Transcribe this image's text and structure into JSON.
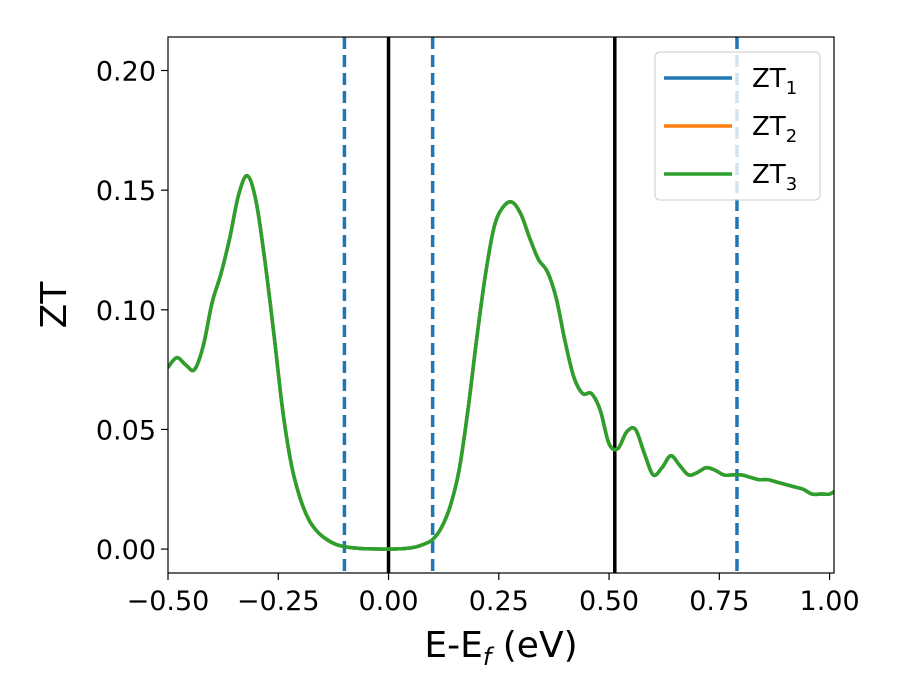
{
  "chart_data": {
    "type": "line",
    "xlabel": "E-E",
    "xlabel_sub": "f",
    "xlabel_unit": " (eV)",
    "ylabel": "ZT",
    "xlim": [
      -0.5,
      1.01
    ],
    "ylim": [
      -0.01,
      0.214
    ],
    "xticks": [
      -0.5,
      -0.25,
      0.0,
      0.25,
      0.5,
      0.75,
      1.0
    ],
    "xtick_labels": [
      "−0.50",
      "−0.25",
      "0.00",
      "0.25",
      "0.50",
      "0.75",
      "1.00"
    ],
    "yticks": [
      0.0,
      0.05,
      0.1,
      0.15,
      0.2
    ],
    "ytick_labels": [
      "0.00",
      "0.05",
      "0.10",
      "0.15",
      "0.20"
    ],
    "legend_position": "top-right",
    "series": [
      {
        "name": "ZT",
        "sub": "1",
        "color": "#1f77b4",
        "x": [
          -0.5,
          -0.48,
          -0.46,
          -0.44,
          -0.42,
          -0.4,
          -0.38,
          -0.36,
          -0.34,
          -0.32,
          -0.3,
          -0.28,
          -0.26,
          -0.24,
          -0.22,
          -0.2,
          -0.18,
          -0.16,
          -0.14,
          -0.12,
          -0.1,
          -0.08,
          -0.06,
          -0.04,
          -0.02,
          0.0,
          0.02,
          0.04,
          0.06,
          0.08,
          0.1,
          0.12,
          0.14,
          0.16,
          0.18,
          0.2,
          0.22,
          0.24,
          0.26,
          0.28,
          0.3,
          0.32,
          0.34,
          0.36,
          0.38,
          0.4,
          0.42,
          0.44,
          0.46,
          0.48,
          0.5,
          0.52,
          0.54,
          0.56,
          0.58,
          0.6,
          0.62,
          0.64,
          0.66,
          0.68,
          0.7,
          0.72,
          0.74,
          0.76,
          0.78,
          0.8,
          0.82,
          0.84,
          0.86,
          0.88,
          0.9,
          0.92,
          0.94,
          0.96,
          0.98,
          1.0,
          1.01
        ],
        "y": [
          0.076,
          0.08,
          0.077,
          0.075,
          0.085,
          0.103,
          0.115,
          0.13,
          0.148,
          0.156,
          0.145,
          0.12,
          0.09,
          0.058,
          0.035,
          0.021,
          0.012,
          0.007,
          0.004,
          0.002,
          0.001,
          0.0005,
          0.0002,
          0.0001,
          0.0,
          0.0,
          0.0001,
          0.0003,
          0.0008,
          0.002,
          0.004,
          0.009,
          0.018,
          0.033,
          0.058,
          0.088,
          0.115,
          0.135,
          0.143,
          0.145,
          0.14,
          0.13,
          0.121,
          0.116,
          0.105,
          0.087,
          0.072,
          0.065,
          0.065,
          0.058,
          0.044,
          0.042,
          0.049,
          0.05,
          0.04,
          0.031,
          0.034,
          0.039,
          0.035,
          0.031,
          0.032,
          0.034,
          0.033,
          0.031,
          0.031,
          0.031,
          0.03,
          0.029,
          0.029,
          0.028,
          0.027,
          0.026,
          0.025,
          0.023,
          0.023,
          0.023,
          0.024
        ]
      },
      {
        "name": "ZT",
        "sub": "2",
        "color": "#ff7f0e",
        "x": [
          -0.5,
          -0.48,
          -0.46,
          -0.44,
          -0.42,
          -0.4,
          -0.38,
          -0.36,
          -0.34,
          -0.32,
          -0.3,
          -0.28,
          -0.26,
          -0.24,
          -0.22,
          -0.2,
          -0.18,
          -0.16,
          -0.14,
          -0.12,
          -0.1,
          -0.08,
          -0.06,
          -0.04,
          -0.02,
          0.0,
          0.02,
          0.04,
          0.06,
          0.08,
          0.1,
          0.12,
          0.14,
          0.16,
          0.18,
          0.2,
          0.22,
          0.24,
          0.26,
          0.28,
          0.3,
          0.32,
          0.34,
          0.36,
          0.38,
          0.4,
          0.42,
          0.44,
          0.46,
          0.48,
          0.5,
          0.52,
          0.54,
          0.56,
          0.58,
          0.6,
          0.62,
          0.64,
          0.66,
          0.68,
          0.7,
          0.72,
          0.74,
          0.76,
          0.78,
          0.8,
          0.82,
          0.84,
          0.86,
          0.88,
          0.9,
          0.92,
          0.94,
          0.96,
          0.98,
          1.0,
          1.01
        ],
        "y": [
          0.076,
          0.08,
          0.077,
          0.075,
          0.085,
          0.103,
          0.115,
          0.13,
          0.148,
          0.156,
          0.145,
          0.12,
          0.09,
          0.058,
          0.035,
          0.021,
          0.012,
          0.007,
          0.004,
          0.002,
          0.001,
          0.0005,
          0.0002,
          0.0001,
          0.0,
          0.0,
          0.0001,
          0.0003,
          0.0008,
          0.002,
          0.004,
          0.009,
          0.018,
          0.033,
          0.058,
          0.088,
          0.115,
          0.135,
          0.143,
          0.145,
          0.14,
          0.13,
          0.121,
          0.116,
          0.105,
          0.087,
          0.072,
          0.065,
          0.065,
          0.058,
          0.044,
          0.042,
          0.049,
          0.05,
          0.04,
          0.031,
          0.034,
          0.039,
          0.035,
          0.031,
          0.032,
          0.034,
          0.033,
          0.031,
          0.031,
          0.031,
          0.03,
          0.029,
          0.029,
          0.028,
          0.027,
          0.026,
          0.025,
          0.023,
          0.023,
          0.023,
          0.024
        ]
      },
      {
        "name": "ZT",
        "sub": "3",
        "color": "#2ca02c",
        "x": [
          -0.5,
          -0.48,
          -0.46,
          -0.44,
          -0.42,
          -0.4,
          -0.38,
          -0.36,
          -0.34,
          -0.32,
          -0.3,
          -0.28,
          -0.26,
          -0.24,
          -0.22,
          -0.2,
          -0.18,
          -0.16,
          -0.14,
          -0.12,
          -0.1,
          -0.08,
          -0.06,
          -0.04,
          -0.02,
          0.0,
          0.02,
          0.04,
          0.06,
          0.08,
          0.1,
          0.12,
          0.14,
          0.16,
          0.18,
          0.2,
          0.22,
          0.24,
          0.26,
          0.28,
          0.3,
          0.32,
          0.34,
          0.36,
          0.38,
          0.4,
          0.42,
          0.44,
          0.46,
          0.48,
          0.5,
          0.52,
          0.54,
          0.56,
          0.58,
          0.6,
          0.62,
          0.64,
          0.66,
          0.68,
          0.7,
          0.72,
          0.74,
          0.76,
          0.78,
          0.8,
          0.82,
          0.84,
          0.86,
          0.88,
          0.9,
          0.92,
          0.94,
          0.96,
          0.98,
          1.0,
          1.01
        ],
        "y": [
          0.076,
          0.08,
          0.077,
          0.075,
          0.085,
          0.103,
          0.115,
          0.13,
          0.148,
          0.156,
          0.145,
          0.12,
          0.09,
          0.058,
          0.035,
          0.021,
          0.012,
          0.007,
          0.004,
          0.002,
          0.001,
          0.0005,
          0.0002,
          0.0001,
          0.0,
          0.0,
          0.0001,
          0.0003,
          0.0008,
          0.002,
          0.004,
          0.009,
          0.018,
          0.033,
          0.058,
          0.088,
          0.115,
          0.135,
          0.143,
          0.145,
          0.14,
          0.13,
          0.121,
          0.116,
          0.105,
          0.087,
          0.072,
          0.065,
          0.065,
          0.058,
          0.044,
          0.042,
          0.049,
          0.05,
          0.04,
          0.031,
          0.034,
          0.039,
          0.035,
          0.031,
          0.032,
          0.034,
          0.033,
          0.031,
          0.031,
          0.031,
          0.03,
          0.029,
          0.029,
          0.028,
          0.027,
          0.026,
          0.025,
          0.023,
          0.023,
          0.023,
          0.024
        ]
      }
    ],
    "vlines": [
      {
        "x": -0.1,
        "color": "#1f77b4",
        "style": "dashed"
      },
      {
        "x": 0.0,
        "color": "#000000",
        "style": "solid"
      },
      {
        "x": 0.1,
        "color": "#1f77b4",
        "style": "dashed"
      },
      {
        "x": 0.513,
        "color": "#000000",
        "style": "solid"
      },
      {
        "x": 0.79,
        "color": "#1f77b4",
        "style": "dashed"
      }
    ]
  }
}
